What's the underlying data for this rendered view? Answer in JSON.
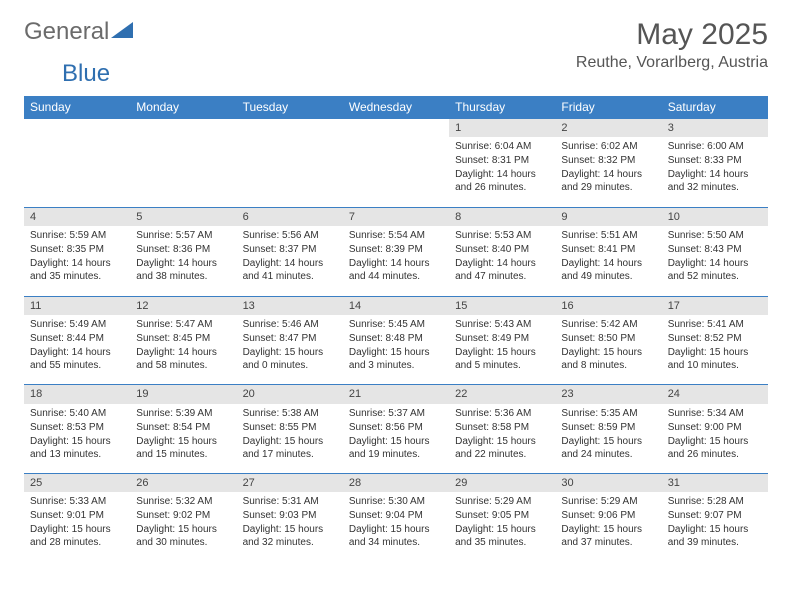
{
  "logo": {
    "part1": "General",
    "part2": "Blue"
  },
  "title": "May 2025",
  "location": "Reuthe, Vorarlberg, Austria",
  "headers": [
    "Sunday",
    "Monday",
    "Tuesday",
    "Wednesday",
    "Thursday",
    "Friday",
    "Saturday"
  ],
  "style": {
    "header_bg": "#3b7fc4",
    "header_fg": "#ffffff",
    "daynum_bg": "#e5e5e5",
    "row_border": "#3b7fc4"
  },
  "weeks": [
    [
      null,
      null,
      null,
      null,
      {
        "n": "1",
        "sr": "6:04 AM",
        "ss": "8:31 PM",
        "dl": "14 hours and 26 minutes."
      },
      {
        "n": "2",
        "sr": "6:02 AM",
        "ss": "8:32 PM",
        "dl": "14 hours and 29 minutes."
      },
      {
        "n": "3",
        "sr": "6:00 AM",
        "ss": "8:33 PM",
        "dl": "14 hours and 32 minutes."
      }
    ],
    [
      {
        "n": "4",
        "sr": "5:59 AM",
        "ss": "8:35 PM",
        "dl": "14 hours and 35 minutes."
      },
      {
        "n": "5",
        "sr": "5:57 AM",
        "ss": "8:36 PM",
        "dl": "14 hours and 38 minutes."
      },
      {
        "n": "6",
        "sr": "5:56 AM",
        "ss": "8:37 PM",
        "dl": "14 hours and 41 minutes."
      },
      {
        "n": "7",
        "sr": "5:54 AM",
        "ss": "8:39 PM",
        "dl": "14 hours and 44 minutes."
      },
      {
        "n": "8",
        "sr": "5:53 AM",
        "ss": "8:40 PM",
        "dl": "14 hours and 47 minutes."
      },
      {
        "n": "9",
        "sr": "5:51 AM",
        "ss": "8:41 PM",
        "dl": "14 hours and 49 minutes."
      },
      {
        "n": "10",
        "sr": "5:50 AM",
        "ss": "8:43 PM",
        "dl": "14 hours and 52 minutes."
      }
    ],
    [
      {
        "n": "11",
        "sr": "5:49 AM",
        "ss": "8:44 PM",
        "dl": "14 hours and 55 minutes."
      },
      {
        "n": "12",
        "sr": "5:47 AM",
        "ss": "8:45 PM",
        "dl": "14 hours and 58 minutes."
      },
      {
        "n": "13",
        "sr": "5:46 AM",
        "ss": "8:47 PM",
        "dl": "15 hours and 0 minutes."
      },
      {
        "n": "14",
        "sr": "5:45 AM",
        "ss": "8:48 PM",
        "dl": "15 hours and 3 minutes."
      },
      {
        "n": "15",
        "sr": "5:43 AM",
        "ss": "8:49 PM",
        "dl": "15 hours and 5 minutes."
      },
      {
        "n": "16",
        "sr": "5:42 AM",
        "ss": "8:50 PM",
        "dl": "15 hours and 8 minutes."
      },
      {
        "n": "17",
        "sr": "5:41 AM",
        "ss": "8:52 PM",
        "dl": "15 hours and 10 minutes."
      }
    ],
    [
      {
        "n": "18",
        "sr": "5:40 AM",
        "ss": "8:53 PM",
        "dl": "15 hours and 13 minutes."
      },
      {
        "n": "19",
        "sr": "5:39 AM",
        "ss": "8:54 PM",
        "dl": "15 hours and 15 minutes."
      },
      {
        "n": "20",
        "sr": "5:38 AM",
        "ss": "8:55 PM",
        "dl": "15 hours and 17 minutes."
      },
      {
        "n": "21",
        "sr": "5:37 AM",
        "ss": "8:56 PM",
        "dl": "15 hours and 19 minutes."
      },
      {
        "n": "22",
        "sr": "5:36 AM",
        "ss": "8:58 PM",
        "dl": "15 hours and 22 minutes."
      },
      {
        "n": "23",
        "sr": "5:35 AM",
        "ss": "8:59 PM",
        "dl": "15 hours and 24 minutes."
      },
      {
        "n": "24",
        "sr": "5:34 AM",
        "ss": "9:00 PM",
        "dl": "15 hours and 26 minutes."
      }
    ],
    [
      {
        "n": "25",
        "sr": "5:33 AM",
        "ss": "9:01 PM",
        "dl": "15 hours and 28 minutes."
      },
      {
        "n": "26",
        "sr": "5:32 AM",
        "ss": "9:02 PM",
        "dl": "15 hours and 30 minutes."
      },
      {
        "n": "27",
        "sr": "5:31 AM",
        "ss": "9:03 PM",
        "dl": "15 hours and 32 minutes."
      },
      {
        "n": "28",
        "sr": "5:30 AM",
        "ss": "9:04 PM",
        "dl": "15 hours and 34 minutes."
      },
      {
        "n": "29",
        "sr": "5:29 AM",
        "ss": "9:05 PM",
        "dl": "15 hours and 35 minutes."
      },
      {
        "n": "30",
        "sr": "5:29 AM",
        "ss": "9:06 PM",
        "dl": "15 hours and 37 minutes."
      },
      {
        "n": "31",
        "sr": "5:28 AM",
        "ss": "9:07 PM",
        "dl": "15 hours and 39 minutes."
      }
    ]
  ],
  "labels": {
    "sunrise": "Sunrise: ",
    "sunset": "Sunset: ",
    "daylight": "Daylight: "
  }
}
